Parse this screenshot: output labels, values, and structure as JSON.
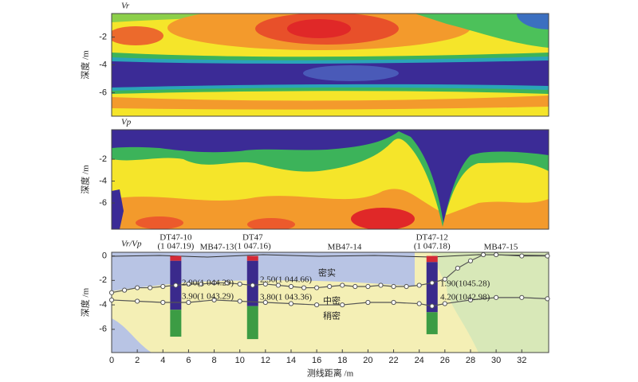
{
  "chart_data": [
    {
      "type": "contour",
      "title": "Vr",
      "ylabel": "深度 /m",
      "xlim": [
        0,
        34.1
      ],
      "ylim": [
        -7.7,
        -0.3
      ],
      "yticks": [
        -2,
        -4,
        -6
      ]
    },
    {
      "type": "contour",
      "title": "Vp",
      "ylabel": "深度 /m",
      "xlim": [
        0,
        34.1
      ],
      "ylim": [
        -8.4,
        0.7
      ],
      "yticks": [
        -2,
        -4,
        -6
      ]
    },
    {
      "type": "line",
      "title": "Vr/Vp",
      "ylabel": "深度 /m",
      "xlabel": "测线距离 /m",
      "xlim": [
        0,
        34.1
      ],
      "ylim": [
        -7.9,
        0.3
      ],
      "yticks": [
        0,
        -2,
        -4,
        -6
      ],
      "xticks": [
        0,
        2,
        4,
        6,
        8,
        10,
        12,
        14,
        16,
        18,
        20,
        22,
        24,
        26,
        28,
        30,
        32
      ],
      "series": [
        {
          "color": "#555555",
          "x": [
            0,
            1,
            2,
            3,
            4,
            5,
            6,
            7,
            8,
            9,
            10,
            11,
            12,
            13,
            14,
            15,
            16,
            17,
            18,
            19,
            20,
            21,
            22,
            23,
            24,
            25,
            26,
            27,
            28,
            29,
            30,
            32,
            34
          ],
          "values": [
            -3.0,
            -2.8,
            -2.6,
            -2.6,
            -2.5,
            -2.4,
            -2.3,
            -2.3,
            -2.2,
            -2.2,
            -2.3,
            -2.4,
            -2.3,
            -2.4,
            -2.5,
            -2.6,
            -2.6,
            -2.5,
            -2.4,
            -2.5,
            -2.5,
            -2.4,
            -2.5,
            -2.5,
            -2.4,
            -2.2,
            -1.9,
            -1.0,
            -0.4,
            0.1,
            0.1,
            0,
            0
          ]
        },
        {
          "color": "#555555",
          "x": [
            0,
            2,
            4,
            6,
            8,
            10,
            12,
            14,
            16,
            18,
            20,
            22,
            24,
            25,
            26,
            28,
            30,
            32,
            34
          ],
          "values": [
            -3.6,
            -3.7,
            -3.8,
            -3.8,
            -3.6,
            -3.7,
            -3.8,
            -3.9,
            -4.0,
            -4.0,
            -3.8,
            -3.8,
            -3.9,
            -4.1,
            -3.9,
            -3.6,
            -3.4,
            -3.4,
            -3.5
          ]
        }
      ],
      "layer_colors": [
        "#d42a36",
        "#3a2a8c",
        "#3c9c44"
      ],
      "boreholes": [
        {
          "x": 5,
          "label": "DT47-10",
          "elevation": "(1 047.19)",
          "layers": [
            0,
            -0.4,
            -4.4,
            -6.6
          ]
        },
        {
          "x": 11,
          "label": "DT47",
          "elevation": "(1 047.16)",
          "layers": [
            0,
            -0.4,
            -4.1,
            -6.8
          ]
        },
        {
          "x": 25,
          "label": "DT47-12",
          "elevation": "(1 047.18)",
          "layers": [
            0,
            -0.5,
            -4.6,
            -6.4
          ]
        }
      ],
      "point_labels": [
        "MB47-13",
        "MB47-14",
        "MB47-15"
      ],
      "annotations": [
        "2.90(1 044.29)",
        "3.90(1 043.29)",
        "2.50(1 044.66)",
        "3.80(1 043.36)",
        "1.90(1045.28)",
        "4.20(1042.98)",
        "密实",
        "中密",
        "稍密"
      ]
    }
  ]
}
